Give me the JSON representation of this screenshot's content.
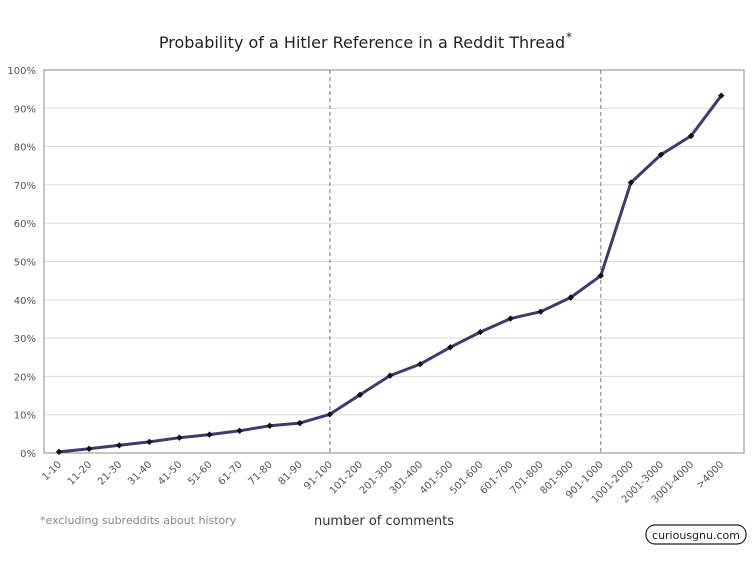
{
  "chart_data": {
    "type": "line",
    "title": "Probability of a Hitler Reference in a Reddit Thread",
    "title_mark": "*",
    "xlabel": "number of comments",
    "ylabel": "",
    "ylim": [
      0,
      100
    ],
    "yticks": [
      0,
      10,
      20,
      30,
      40,
      50,
      60,
      70,
      80,
      90,
      100
    ],
    "ytick_suffix": "%",
    "grid": "horizontal",
    "categories": [
      "1-10",
      "11-20",
      "21-30",
      "31-40",
      "41-50",
      "51-60",
      "61-70",
      "71-80",
      "81-90",
      "91-100",
      "101-200",
      "201-300",
      "301-400",
      "401-500",
      "501-600",
      "601-700",
      "701-800",
      "801-900",
      "901-1000",
      "1001-2000",
      "2001-3000",
      "3001-4000",
      ">4000"
    ],
    "series": [
      {
        "values": [
          0.3,
          1.1,
          2.0,
          2.9,
          4.0,
          4.8,
          5.8,
          7.1,
          7.8,
          10.1,
          15.2,
          20.2,
          23.2,
          27.6,
          31.6,
          35.1,
          36.9,
          40.6,
          46.3,
          70.6,
          77.9,
          82.8,
          93.3
        ],
        "color": "#3c3b6e",
        "marker": "diamond",
        "marker_color": "#111111"
      }
    ],
    "vertical_markers": [
      "91-100",
      "901-1000"
    ],
    "footnote": "*excluding subreddits about history",
    "brand": "curiousgnu.com"
  }
}
